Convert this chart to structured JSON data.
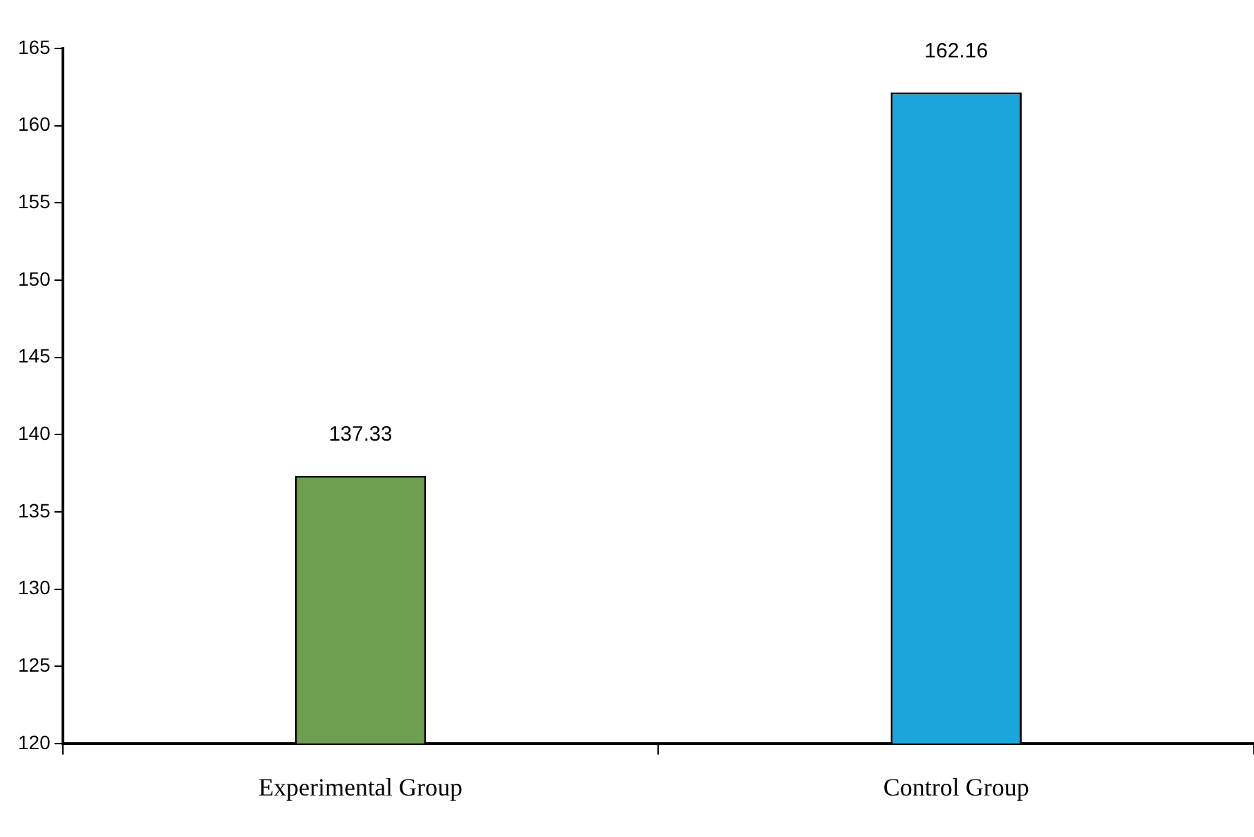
{
  "chart_data": {
    "type": "bar",
    "categories": [
      "Experimental Group",
      "Control Group"
    ],
    "values": [
      137.33,
      162.16
    ],
    "colors": [
      "#6e9e50",
      "#1aa6dc"
    ],
    "ylim": [
      120,
      165
    ],
    "yticks": [
      120,
      125,
      130,
      135,
      140,
      145,
      150,
      155,
      160,
      165
    ],
    "grid": false,
    "legend": false,
    "data_labels": true
  }
}
